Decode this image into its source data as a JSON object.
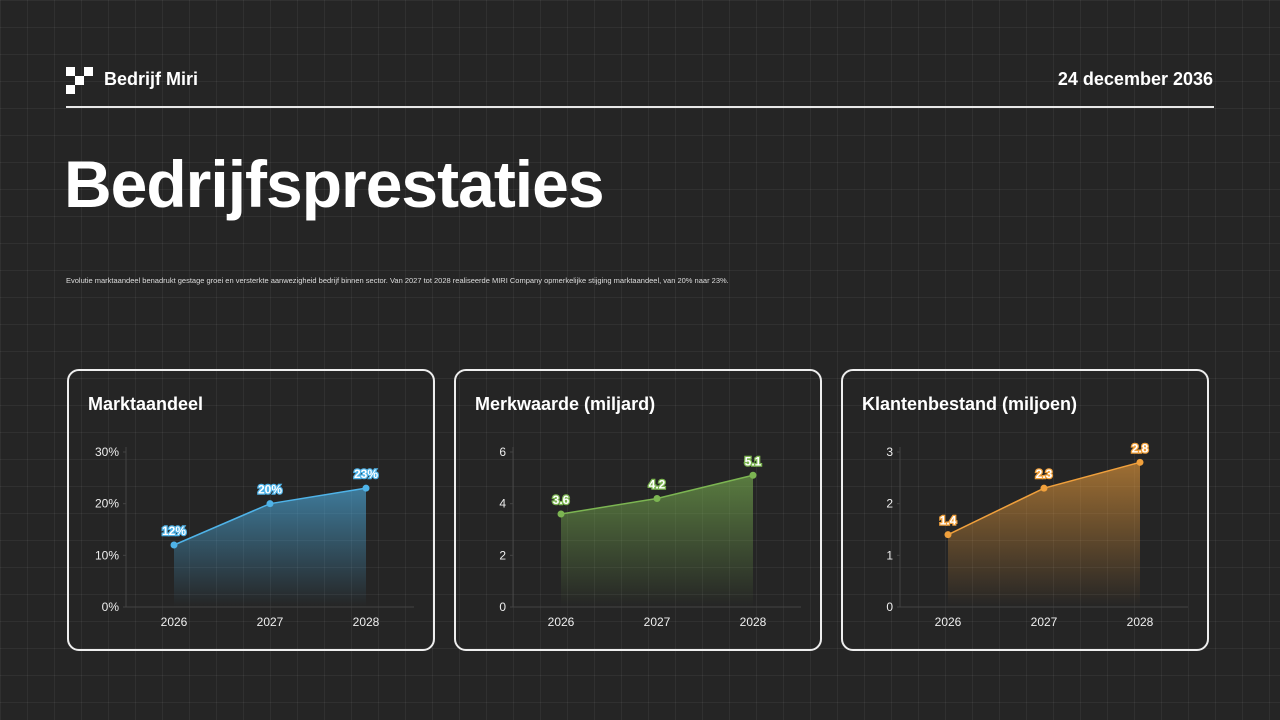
{
  "header": {
    "brand": "Bedrijf Miri",
    "date": "24 december 2036"
  },
  "title": "Bedrijfsprestaties",
  "description": "Evolutie marktaandeel benadrukt gestage groei en versterkte aanwezigheid bedrijf binnen sector. Van 2027 tot 2028 realiseerde MIRI Company opmerkelijke stijging marktaandeel, van 20% naar 23%.",
  "chart_data": [
    {
      "type": "area",
      "title": "Marktaandeel",
      "categories": [
        "2026",
        "2027",
        "2028"
      ],
      "values": [
        12,
        20,
        23
      ],
      "value_labels": [
        "12%",
        "20%",
        "23%"
      ],
      "color": "#4fb3e8",
      "ylim": [
        0,
        30
      ],
      "yticks": [
        {
          "value": 0,
          "label": "0%"
        },
        {
          "value": 10,
          "label": "10%"
        },
        {
          "value": 20,
          "label": "20%"
        },
        {
          "value": 30,
          "label": "30%"
        }
      ]
    },
    {
      "type": "area",
      "title": "Merkwaarde (miljard)",
      "categories": [
        "2026",
        "2027",
        "2028"
      ],
      "values": [
        3.6,
        4.2,
        5.1
      ],
      "color": "#7cb552",
      "ylim": [
        0,
        6
      ],
      "yticks": [
        0,
        2,
        4,
        6
      ]
    },
    {
      "type": "area",
      "title": "Klantenbestand (miljoen)",
      "categories": [
        "2026",
        "2027",
        "2028"
      ],
      "values": [
        1.4,
        2.3,
        2.8
      ],
      "color": "#f0a03c",
      "ylim": [
        0,
        3
      ],
      "yticks": [
        0,
        1,
        2,
        3
      ]
    }
  ]
}
